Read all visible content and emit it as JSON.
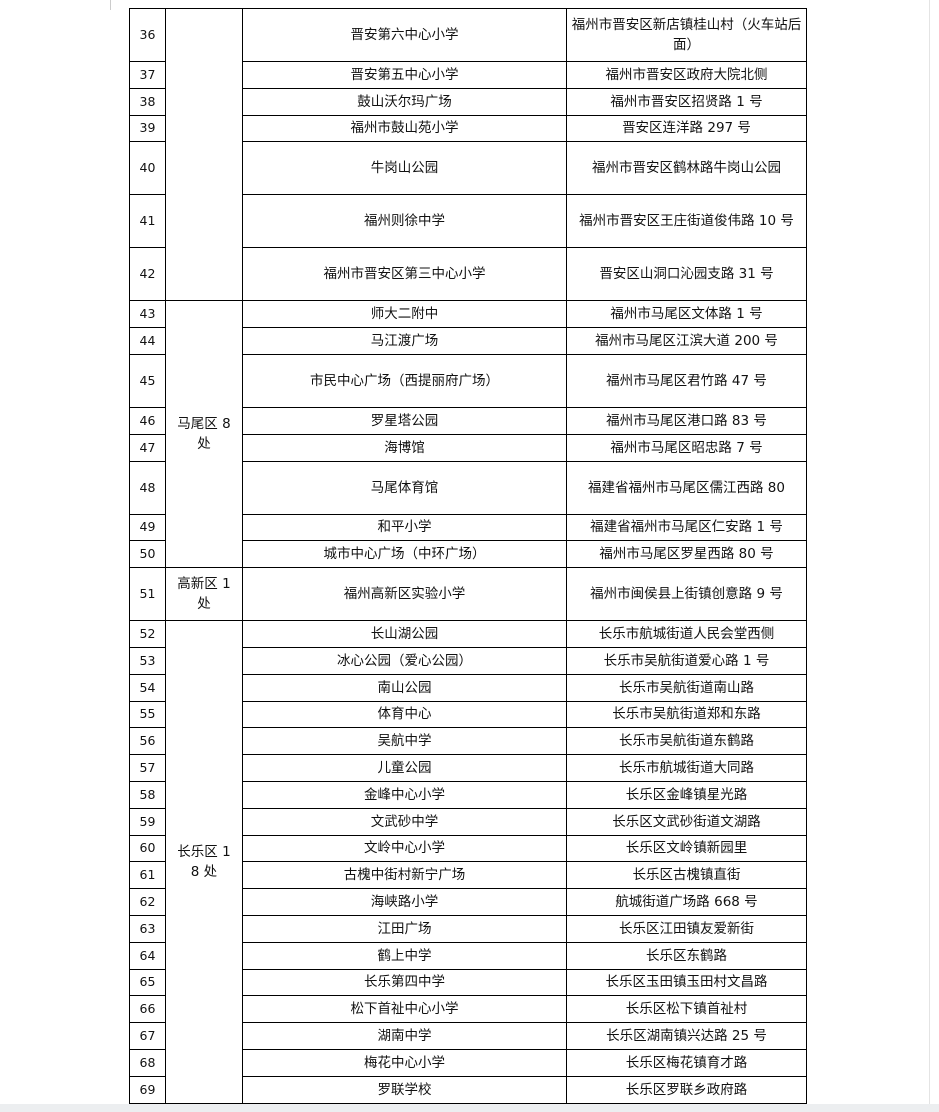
{
  "table": {
    "rows": [
      {
        "no": "36",
        "district": "",
        "span": 7,
        "name": "晋安第六中心小学",
        "address": "福州市晋安区新店镇桂山村（火车站后面）",
        "tall": true
      },
      {
        "no": "37",
        "name": "晋安第五中心小学",
        "address": "福州市晋安区政府大院北侧"
      },
      {
        "no": "38",
        "name": "鼓山沃尔玛广场",
        "address": "福州市晋安区招贤路 1 号"
      },
      {
        "no": "39",
        "name": "福州市鼓山苑小学",
        "address": "晋安区连洋路 297 号"
      },
      {
        "no": "40",
        "name": "牛岗山公园",
        "address": "福州市晋安区鹤林路牛岗山公园",
        "tall": true
      },
      {
        "no": "41",
        "name": "福州则徐中学",
        "address": "福州市晋安区王庄街道俊伟路 10 号",
        "tall": true
      },
      {
        "no": "42",
        "name": "福州市晋安区第三中心小学",
        "address": "晋安区山洞口沁园支路 31 号",
        "tall": true
      },
      {
        "no": "43",
        "district": "马尾区 8 处",
        "span": 8,
        "name": "师大二附中",
        "address": "福州市马尾区文体路 1 号"
      },
      {
        "no": "44",
        "name": "马江渡广场",
        "address": "福州市马尾区江滨大道 200 号"
      },
      {
        "no": "45",
        "name": "市民中心广场（西提丽府广场）",
        "address": "福州市马尾区君竹路 47 号",
        "tall": true
      },
      {
        "no": "46",
        "name": "罗星塔公园",
        "address": "福州市马尾区港口路 83 号"
      },
      {
        "no": "47",
        "name": "海博馆",
        "address": "福州市马尾区昭忠路 7 号"
      },
      {
        "no": "48",
        "name": "马尾体育馆",
        "address": "福建省福州市马尾区儒江西路 80",
        "tall": true
      },
      {
        "no": "49",
        "name": "和平小学",
        "address": "福建省福州市马尾区仁安路 1 号"
      },
      {
        "no": "50",
        "name": "城市中心广场（中环广场）",
        "address": "福州市马尾区罗星西路 80 号"
      },
      {
        "no": "51",
        "district": "高新区 1 处",
        "span": 1,
        "name": "福州高新区实验小学",
        "address": "福州市闽侯县上街镇创意路 9 号",
        "tall": true
      },
      {
        "no": "52",
        "district": "长乐区 18 处",
        "span": 18,
        "name": "长山湖公园",
        "address": "长乐市航城街道人民会堂西侧"
      },
      {
        "no": "53",
        "name": "冰心公园（爱心公园）",
        "address": "长乐市吴航街道爱心路 1 号"
      },
      {
        "no": "54",
        "name": "南山公园",
        "address": "长乐市吴航街道南山路"
      },
      {
        "no": "55",
        "name": "体育中心",
        "address": "长乐市吴航街道郑和东路"
      },
      {
        "no": "56",
        "name": "吴航中学",
        "address": "长乐市吴航街道东鹤路"
      },
      {
        "no": "57",
        "name": "儿童公园",
        "address": "长乐市航城街道大同路"
      },
      {
        "no": "58",
        "name": "金峰中心小学",
        "address": "长乐区金峰镇星光路"
      },
      {
        "no": "59",
        "name": "文武砂中学",
        "address": "长乐区文武砂街道文湖路"
      },
      {
        "no": "60",
        "name": "文岭中心小学",
        "address": "长乐区文岭镇新园里"
      },
      {
        "no": "61",
        "name": "古槐中街村新宁广场",
        "address": "长乐区古槐镇直街"
      },
      {
        "no": "62",
        "name": "海峡路小学",
        "address": "航城街道广场路 668 号"
      },
      {
        "no": "63",
        "name": "江田广场",
        "address": "长乐区江田镇友爱新街"
      },
      {
        "no": "64",
        "name": "鹤上中学",
        "address": "长乐区东鹤路"
      },
      {
        "no": "65",
        "name": "长乐第四中学",
        "address": "长乐区玉田镇玉田村文昌路"
      },
      {
        "no": "66",
        "name": "松下首祉中心小学",
        "address": "长乐区松下镇首祉村"
      },
      {
        "no": "67",
        "name": "湖南中学",
        "address": "长乐区湖南镇兴达路 25 号"
      },
      {
        "no": "68",
        "name": "梅花中心小学",
        "address": "长乐区梅花镇育才路"
      },
      {
        "no": "69",
        "name": "罗联学校",
        "address": "长乐区罗联乡政府路"
      }
    ]
  }
}
